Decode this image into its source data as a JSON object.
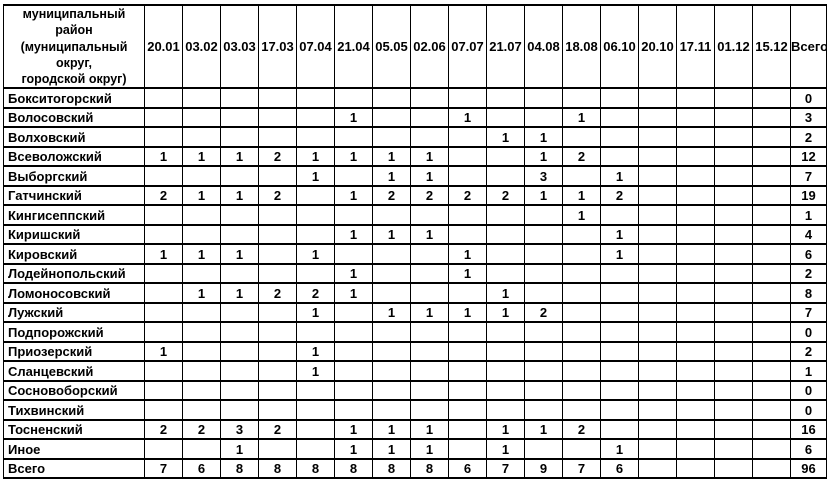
{
  "table": {
    "corner_header": "муниципальный район\n(муниципальный округ,\nгородской округ)",
    "date_columns": [
      "20.01",
      "03.02",
      "03.03",
      "17.03",
      "07.04",
      "21.04",
      "05.05",
      "02.06",
      "07.07",
      "21.07",
      "04.08",
      "18.08",
      "06.10",
      "20.10",
      "17.11",
      "01.12",
      "15.12"
    ],
    "total_column": "Всего",
    "rows": [
      {
        "name": "Бокситогорский",
        "values": [
          "",
          "",
          "",
          "",
          "",
          "",
          "",
          "",
          "",
          "",
          "",
          "",
          "",
          "",
          "",
          "",
          ""
        ],
        "total": "0"
      },
      {
        "name": "Волосовский",
        "values": [
          "",
          "",
          "",
          "",
          "",
          "1",
          "",
          "",
          "1",
          "",
          "",
          "1",
          "",
          "",
          "",
          "",
          ""
        ],
        "total": "3"
      },
      {
        "name": "Волховский",
        "values": [
          "",
          "",
          "",
          "",
          "",
          "",
          "",
          "",
          "",
          "1",
          "1",
          "",
          "",
          "",
          "",
          "",
          ""
        ],
        "total": "2"
      },
      {
        "name": "Всеволожский",
        "values": [
          "1",
          "1",
          "1",
          "2",
          "1",
          "1",
          "1",
          "1",
          "",
          "",
          "1",
          "2",
          "",
          "",
          "",
          "",
          ""
        ],
        "total": "12"
      },
      {
        "name": "Выборгский",
        "values": [
          "",
          "",
          "",
          "",
          "1",
          "",
          "1",
          "1",
          "",
          "",
          "3",
          "",
          "1",
          "",
          "",
          "",
          ""
        ],
        "total": "7"
      },
      {
        "name": "Гатчинский",
        "values": [
          "2",
          "1",
          "1",
          "2",
          "",
          "1",
          "2",
          "2",
          "2",
          "2",
          "1",
          "1",
          "2",
          "",
          "",
          "",
          ""
        ],
        "total": "19"
      },
      {
        "name": "Кингисеппский",
        "values": [
          "",
          "",
          "",
          "",
          "",
          "",
          "",
          "",
          "",
          "",
          "",
          "1",
          "",
          "",
          "",
          "",
          ""
        ],
        "total": "1"
      },
      {
        "name": "Киришский",
        "values": [
          "",
          "",
          "",
          "",
          "",
          "1",
          "1",
          "1",
          "",
          "",
          "",
          "",
          "1",
          "",
          "",
          "",
          ""
        ],
        "total": "4"
      },
      {
        "name": "Кировский",
        "values": [
          "1",
          "1",
          "1",
          "",
          "1",
          "",
          "",
          "",
          "1",
          "",
          "",
          "",
          "1",
          "",
          "",
          "",
          ""
        ],
        "total": "6"
      },
      {
        "name": "Лодейнопольский",
        "values": [
          "",
          "",
          "",
          "",
          "",
          "1",
          "",
          "",
          "1",
          "",
          "",
          "",
          "",
          "",
          "",
          "",
          ""
        ],
        "total": "2"
      },
      {
        "name": "Ломоносовский",
        "values": [
          "",
          "1",
          "1",
          "2",
          "2",
          "1",
          "",
          "",
          "",
          "1",
          "",
          "",
          "",
          "",
          "",
          "",
          ""
        ],
        "total": "8"
      },
      {
        "name": "Лужский",
        "values": [
          "",
          "",
          "",
          "",
          "1",
          "",
          "1",
          "1",
          "1",
          "1",
          "2",
          "",
          "",
          "",
          "",
          "",
          ""
        ],
        "total": "7"
      },
      {
        "name": "Подпорожский",
        "values": [
          "",
          "",
          "",
          "",
          "",
          "",
          "",
          "",
          "",
          "",
          "",
          "",
          "",
          "",
          "",
          "",
          ""
        ],
        "total": "0"
      },
      {
        "name": "Приозерский",
        "values": [
          "1",
          "",
          "",
          "",
          "1",
          "",
          "",
          "",
          "",
          "",
          "",
          "",
          "",
          "",
          "",
          "",
          ""
        ],
        "total": "2"
      },
      {
        "name": "Сланцевский",
        "values": [
          "",
          "",
          "",
          "",
          "1",
          "",
          "",
          "",
          "",
          "",
          "",
          "",
          "",
          "",
          "",
          "",
          ""
        ],
        "total": "1"
      },
      {
        "name": "Сосновоборский",
        "values": [
          "",
          "",
          "",
          "",
          "",
          "",
          "",
          "",
          "",
          "",
          "",
          "",
          "",
          "",
          "",
          "",
          ""
        ],
        "total": "0"
      },
      {
        "name": "Тихвинский",
        "values": [
          "",
          "",
          "",
          "",
          "",
          "",
          "",
          "",
          "",
          "",
          "",
          "",
          "",
          "",
          "",
          "",
          ""
        ],
        "total": "0"
      },
      {
        "name": "Тосненский",
        "values": [
          "2",
          "2",
          "3",
          "2",
          "",
          "1",
          "1",
          "1",
          "",
          "1",
          "1",
          "2",
          "",
          "",
          "",
          "",
          ""
        ],
        "total": "16"
      },
      {
        "name": "Иное",
        "values": [
          "",
          "",
          "1",
          "",
          "",
          "1",
          "1",
          "1",
          "",
          "1",
          "",
          "",
          "1",
          "",
          "",
          "",
          ""
        ],
        "total": "6"
      },
      {
        "name": "Всего",
        "values": [
          "7",
          "6",
          "8",
          "8",
          "8",
          "8",
          "8",
          "8",
          "6",
          "7",
          "9",
          "7",
          "6",
          "",
          "",
          "",
          ""
        ],
        "total": "96"
      }
    ]
  }
}
